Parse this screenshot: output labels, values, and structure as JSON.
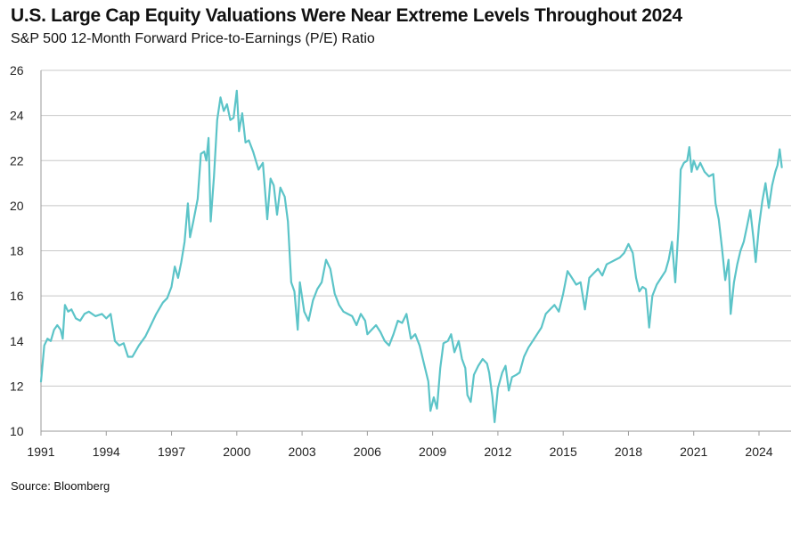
{
  "title": "U.S. Large Cap Equity Valuations Were Near Extreme Levels Throughout 2024",
  "subtitle": "S&P 500 12-Month Forward Price-to-Earnings (P/E) Ratio",
  "source": "Source: Bloomberg",
  "colors": {
    "line": "#5cc4c8",
    "grid": "#c8c8c8"
  },
  "chart_data": {
    "type": "line",
    "title": "U.S. Large Cap Equity Valuations Were Near Extreme Levels Throughout 2024",
    "subtitle": "S&P 500 12-Month Forward Price-to-Earnings (P/E) Ratio",
    "xlabel": "",
    "ylabel": "",
    "xlim": [
      1991,
      2025.2
    ],
    "ylim": [
      10,
      26
    ],
    "x_ticks": [
      1991,
      1994,
      1997,
      2000,
      2003,
      2006,
      2009,
      2012,
      2015,
      2018,
      2021,
      2024
    ],
    "x_tick_labels": [
      "1991",
      "1994",
      "1997",
      "2000",
      "2003",
      "2006",
      "2009",
      "2012",
      "2015",
      "2018",
      "2021",
      "2024"
    ],
    "y_ticks": [
      10,
      12,
      14,
      16,
      18,
      20,
      22,
      24,
      26
    ],
    "y_tick_labels": [
      "10",
      "12",
      "14",
      "16",
      "18",
      "20",
      "22",
      "24",
      "26"
    ],
    "grid": true,
    "series": [
      {
        "points": [
          [
            1991.0,
            12.2
          ],
          [
            1991.15,
            13.8
          ],
          [
            1991.3,
            14.1
          ],
          [
            1991.45,
            14.0
          ],
          [
            1991.6,
            14.5
          ],
          [
            1991.75,
            14.7
          ],
          [
            1991.9,
            14.5
          ],
          [
            1992.0,
            14.1
          ],
          [
            1992.1,
            15.6
          ],
          [
            1992.25,
            15.3
          ],
          [
            1992.4,
            15.4
          ],
          [
            1992.6,
            15.0
          ],
          [
            1992.8,
            14.9
          ],
          [
            1993.0,
            15.2
          ],
          [
            1993.2,
            15.3
          ],
          [
            1993.5,
            15.1
          ],
          [
            1993.8,
            15.2
          ],
          [
            1994.0,
            15.0
          ],
          [
            1994.2,
            15.2
          ],
          [
            1994.4,
            14.0
          ],
          [
            1994.6,
            13.8
          ],
          [
            1994.8,
            13.9
          ],
          [
            1995.0,
            13.3
          ],
          [
            1995.2,
            13.3
          ],
          [
            1995.5,
            13.8
          ],
          [
            1995.8,
            14.2
          ],
          [
            1996.0,
            14.6
          ],
          [
            1996.3,
            15.2
          ],
          [
            1996.6,
            15.7
          ],
          [
            1996.8,
            15.9
          ],
          [
            1997.0,
            16.4
          ],
          [
            1997.15,
            17.3
          ],
          [
            1997.3,
            16.8
          ],
          [
            1997.45,
            17.5
          ],
          [
            1997.6,
            18.4
          ],
          [
            1997.75,
            20.1
          ],
          [
            1997.85,
            18.6
          ],
          [
            1998.0,
            19.3
          ],
          [
            1998.2,
            20.3
          ],
          [
            1998.35,
            22.3
          ],
          [
            1998.5,
            22.4
          ],
          [
            1998.6,
            22.0
          ],
          [
            1998.7,
            23.0
          ],
          [
            1998.8,
            19.3
          ],
          [
            1998.95,
            21.3
          ],
          [
            1999.1,
            23.8
          ],
          [
            1999.25,
            24.8
          ],
          [
            1999.4,
            24.2
          ],
          [
            1999.55,
            24.5
          ],
          [
            1999.7,
            23.8
          ],
          [
            1999.85,
            23.9
          ],
          [
            2000.0,
            25.1
          ],
          [
            2000.1,
            23.3
          ],
          [
            2000.25,
            24.1
          ],
          [
            2000.4,
            22.8
          ],
          [
            2000.55,
            22.9
          ],
          [
            2000.75,
            22.4
          ],
          [
            2001.0,
            21.6
          ],
          [
            2001.2,
            21.9
          ],
          [
            2001.4,
            19.4
          ],
          [
            2001.55,
            21.2
          ],
          [
            2001.7,
            20.9
          ],
          [
            2001.85,
            19.6
          ],
          [
            2002.0,
            20.8
          ],
          [
            2002.2,
            20.4
          ],
          [
            2002.35,
            19.3
          ],
          [
            2002.5,
            16.6
          ],
          [
            2002.65,
            16.2
          ],
          [
            2002.8,
            14.5
          ],
          [
            2002.9,
            16.6
          ],
          [
            2003.1,
            15.3
          ],
          [
            2003.3,
            14.9
          ],
          [
            2003.5,
            15.8
          ],
          [
            2003.7,
            16.3
          ],
          [
            2003.9,
            16.6
          ],
          [
            2004.1,
            17.6
          ],
          [
            2004.3,
            17.2
          ],
          [
            2004.5,
            16.1
          ],
          [
            2004.7,
            15.6
          ],
          [
            2004.9,
            15.3
          ],
          [
            2005.1,
            15.2
          ],
          [
            2005.3,
            15.1
          ],
          [
            2005.5,
            14.7
          ],
          [
            2005.7,
            15.2
          ],
          [
            2005.9,
            14.9
          ],
          [
            2006.0,
            14.3
          ],
          [
            2006.2,
            14.5
          ],
          [
            2006.4,
            14.7
          ],
          [
            2006.6,
            14.4
          ],
          [
            2006.8,
            14.0
          ],
          [
            2007.0,
            13.8
          ],
          [
            2007.2,
            14.3
          ],
          [
            2007.4,
            14.9
          ],
          [
            2007.6,
            14.8
          ],
          [
            2007.8,
            15.2
          ],
          [
            2008.0,
            14.1
          ],
          [
            2008.2,
            14.3
          ],
          [
            2008.4,
            13.8
          ],
          [
            2008.6,
            13.0
          ],
          [
            2008.8,
            12.2
          ],
          [
            2008.9,
            10.9
          ],
          [
            2009.05,
            11.5
          ],
          [
            2009.2,
            11.0
          ],
          [
            2009.35,
            12.8
          ],
          [
            2009.5,
            13.9
          ],
          [
            2009.7,
            14.0
          ],
          [
            2009.85,
            14.3
          ],
          [
            2010.0,
            13.5
          ],
          [
            2010.2,
            14.0
          ],
          [
            2010.35,
            13.2
          ],
          [
            2010.5,
            12.8
          ],
          [
            2010.6,
            11.6
          ],
          [
            2010.75,
            11.3
          ],
          [
            2010.9,
            12.5
          ],
          [
            2011.1,
            12.9
          ],
          [
            2011.3,
            13.2
          ],
          [
            2011.5,
            13.0
          ],
          [
            2011.6,
            12.6
          ],
          [
            2011.75,
            11.5
          ],
          [
            2011.85,
            10.4
          ],
          [
            2012.0,
            11.9
          ],
          [
            2012.2,
            12.6
          ],
          [
            2012.35,
            12.9
          ],
          [
            2012.5,
            11.8
          ],
          [
            2012.65,
            12.4
          ],
          [
            2012.85,
            12.5
          ],
          [
            2013.0,
            12.6
          ],
          [
            2013.2,
            13.3
          ],
          [
            2013.4,
            13.7
          ],
          [
            2013.6,
            14.0
          ],
          [
            2013.8,
            14.3
          ],
          [
            2014.0,
            14.6
          ],
          [
            2014.2,
            15.2
          ],
          [
            2014.4,
            15.4
          ],
          [
            2014.6,
            15.6
          ],
          [
            2014.8,
            15.3
          ],
          [
            2015.0,
            16.1
          ],
          [
            2015.2,
            17.1
          ],
          [
            2015.4,
            16.8
          ],
          [
            2015.6,
            16.5
          ],
          [
            2015.8,
            16.6
          ],
          [
            2016.0,
            15.4
          ],
          [
            2016.2,
            16.8
          ],
          [
            2016.4,
            17.0
          ],
          [
            2016.6,
            17.2
          ],
          [
            2016.8,
            16.9
          ],
          [
            2017.0,
            17.4
          ],
          [
            2017.2,
            17.5
          ],
          [
            2017.4,
            17.6
          ],
          [
            2017.6,
            17.7
          ],
          [
            2017.8,
            17.9
          ],
          [
            2018.0,
            18.3
          ],
          [
            2018.2,
            17.9
          ],
          [
            2018.35,
            16.8
          ],
          [
            2018.5,
            16.2
          ],
          [
            2018.65,
            16.4
          ],
          [
            2018.8,
            16.3
          ],
          [
            2018.95,
            14.6
          ],
          [
            2019.1,
            16.0
          ],
          [
            2019.3,
            16.5
          ],
          [
            2019.5,
            16.8
          ],
          [
            2019.7,
            17.1
          ],
          [
            2019.85,
            17.6
          ],
          [
            2020.0,
            18.4
          ],
          [
            2020.15,
            16.6
          ],
          [
            2020.3,
            19.0
          ],
          [
            2020.4,
            21.6
          ],
          [
            2020.55,
            21.9
          ],
          [
            2020.7,
            22.0
          ],
          [
            2020.8,
            22.6
          ],
          [
            2020.9,
            21.5
          ],
          [
            2021.0,
            22.0
          ],
          [
            2021.15,
            21.6
          ],
          [
            2021.3,
            21.9
          ],
          [
            2021.5,
            21.5
          ],
          [
            2021.7,
            21.3
          ],
          [
            2021.9,
            21.4
          ],
          [
            2022.0,
            20.1
          ],
          [
            2022.15,
            19.4
          ],
          [
            2022.3,
            18.1
          ],
          [
            2022.45,
            16.7
          ],
          [
            2022.6,
            17.6
          ],
          [
            2022.7,
            15.2
          ],
          [
            2022.85,
            16.6
          ],
          [
            2023.0,
            17.4
          ],
          [
            2023.15,
            18.0
          ],
          [
            2023.3,
            18.4
          ],
          [
            2023.45,
            19.1
          ],
          [
            2023.6,
            19.8
          ],
          [
            2023.75,
            18.5
          ],
          [
            2023.85,
            17.5
          ],
          [
            2024.0,
            19.1
          ],
          [
            2024.15,
            20.2
          ],
          [
            2024.3,
            21.0
          ],
          [
            2024.45,
            19.9
          ],
          [
            2024.6,
            20.9
          ],
          [
            2024.75,
            21.5
          ],
          [
            2024.85,
            21.8
          ],
          [
            2024.95,
            22.5
          ],
          [
            2025.05,
            21.7
          ]
        ]
      }
    ]
  }
}
